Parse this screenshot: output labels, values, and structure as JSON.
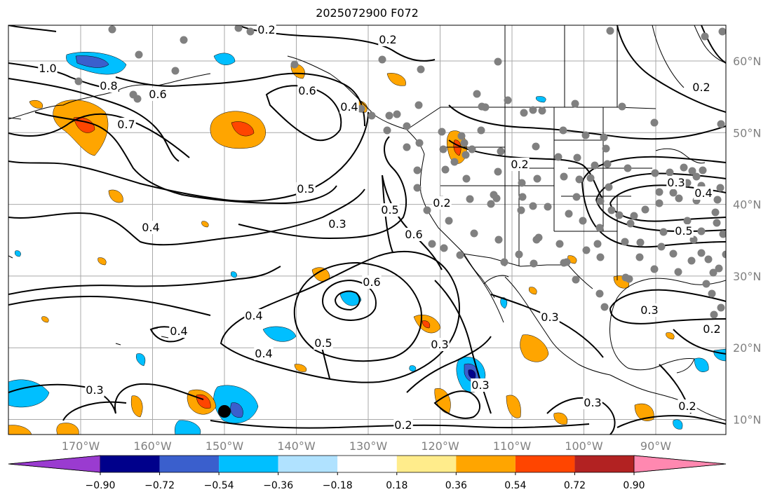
{
  "title": "2025072900 F072",
  "lat_labels": [
    "60°N",
    "50°N",
    "40°N",
    "30°N",
    "20°N",
    "10°N"
  ],
  "lon_labels": [
    "170°W",
    "160°W",
    "150°W",
    "140°W",
    "130°W",
    "120°W",
    "110°W",
    "100°W",
    "90°W"
  ],
  "colorbar": {
    "ticks": [
      "−0.90",
      "−0.72",
      "−0.54",
      "−0.36",
      "−0.18",
      "0.18",
      "0.36",
      "0.54",
      "0.72",
      "0.90"
    ],
    "colors": [
      "#9a3bd0",
      "#00008b",
      "#3a5fcd",
      "#00bfff",
      "#b0e2ff",
      "#ffffff",
      "#ffec8b",
      "#ffa500",
      "#ff4500",
      "#b22222",
      "#ff88b0"
    ]
  },
  "contour_labels": [
    "0.2",
    "0.2",
    "1.0",
    "0.8",
    "0.6",
    "0.7",
    "0.6",
    "0.4",
    "0.5",
    "0.4",
    "0.3",
    "0.5",
    "0.6",
    "0.6",
    "0.4",
    "0.4",
    "0.5",
    "0.3",
    "0.3",
    "0.2",
    "0.3",
    "0.2",
    "0.2",
    "0.3",
    "0.4",
    "0.5",
    "0.3",
    "0.3",
    "0.3",
    "0.2",
    "0.2",
    "0.2",
    "0.4"
  ],
  "map": {
    "lat_range": [
      8,
      66
    ],
    "lon_range": [
      -180,
      -80
    ],
    "grid": true,
    "station_color": "#808080",
    "contour_color": "#000000"
  }
}
